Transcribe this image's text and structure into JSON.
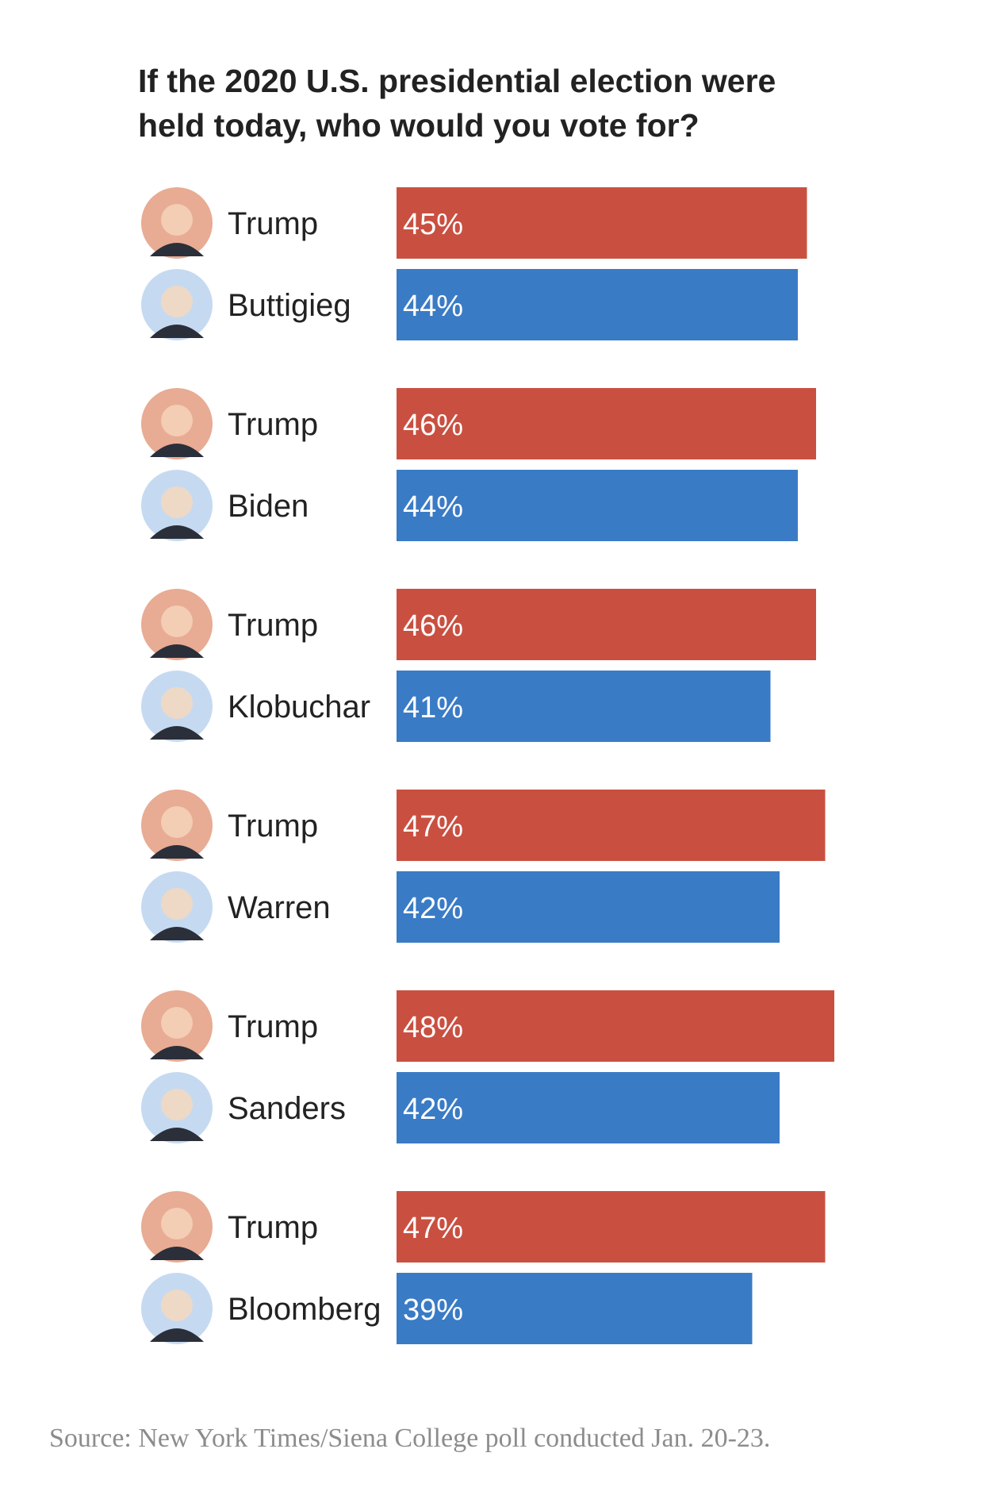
{
  "chart_data": {
    "type": "bar",
    "title": "If the 2020 U.S. presidential election were held today, who would you vote for?",
    "value_suffix": "%",
    "colors": {
      "Trump": "#c95041",
      "Democrat": "#3a7bc5"
    },
    "matchups": [
      {
        "rows": [
          {
            "name": "Trump",
            "value": 45,
            "party": "republican"
          },
          {
            "name": "Buttigieg",
            "value": 44,
            "party": "democrat"
          }
        ]
      },
      {
        "rows": [
          {
            "name": "Trump",
            "value": 46,
            "party": "republican"
          },
          {
            "name": "Biden",
            "value": 44,
            "party": "democrat"
          }
        ]
      },
      {
        "rows": [
          {
            "name": "Trump",
            "value": 46,
            "party": "republican"
          },
          {
            "name": "Klobuchar",
            "value": 41,
            "party": "democrat"
          }
        ]
      },
      {
        "rows": [
          {
            "name": "Trump",
            "value": 47,
            "party": "republican"
          },
          {
            "name": "Warren",
            "value": 42,
            "party": "democrat"
          }
        ]
      },
      {
        "rows": [
          {
            "name": "Trump",
            "value": 48,
            "party": "republican"
          },
          {
            "name": "Sanders",
            "value": 42,
            "party": "democrat"
          }
        ]
      },
      {
        "rows": [
          {
            "name": "Trump",
            "value": 47,
            "party": "republican"
          },
          {
            "name": "Bloomberg",
            "value": 39,
            "party": "democrat"
          }
        ]
      }
    ]
  },
  "source": "Source: New York Times/Siena College poll conducted Jan. 20-23."
}
